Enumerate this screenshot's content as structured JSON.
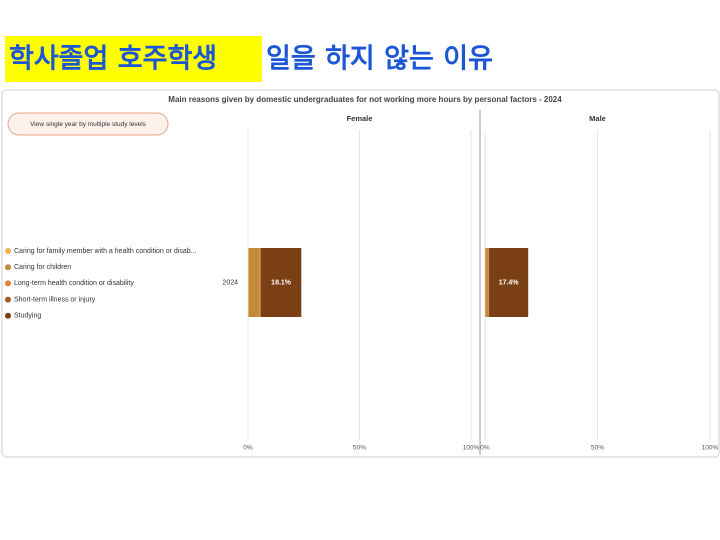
{
  "slide": {
    "title_highlight": "학사졸업 호주학생",
    "title_rest": "일을 하지 않는 이유"
  },
  "chart_data": {
    "type": "bar",
    "orientation": "horizontal",
    "stacked": true,
    "title": "Main reasons given by domestic undergraduates for not working more hours by personal factors - 2024",
    "button": "View single year by multiple study levels",
    "facets": [
      "Female",
      "Male"
    ],
    "category": "2024",
    "xlim": [
      0,
      100
    ],
    "xticks": [
      {
        "value": 0,
        "label": "0%"
      },
      {
        "value": 50,
        "label": "50%"
      },
      {
        "value": 100,
        "label": "100%"
      }
    ],
    "grid": true,
    "series": [
      {
        "name": "Caring for family member with a health condition or disab...",
        "color": "#f2b14a",
        "values": [
          0.4,
          0.2
        ]
      },
      {
        "name": "Caring for children",
        "color": "#c08a3a",
        "values": [
          4.8,
          1.2
        ]
      },
      {
        "name": "Long-term health condition or disability",
        "color": "#e8823a",
        "values": [
          0.3,
          0.2
        ]
      },
      {
        "name": "Short-term illness or injury",
        "color": "#a55a2a",
        "values": [
          0.3,
          0.2
        ]
      },
      {
        "name": "Studying",
        "color": "#7b3f16",
        "values": [
          18.1,
          17.4
        ],
        "value_labels": [
          "18.1%",
          "17.4%"
        ]
      }
    ]
  }
}
